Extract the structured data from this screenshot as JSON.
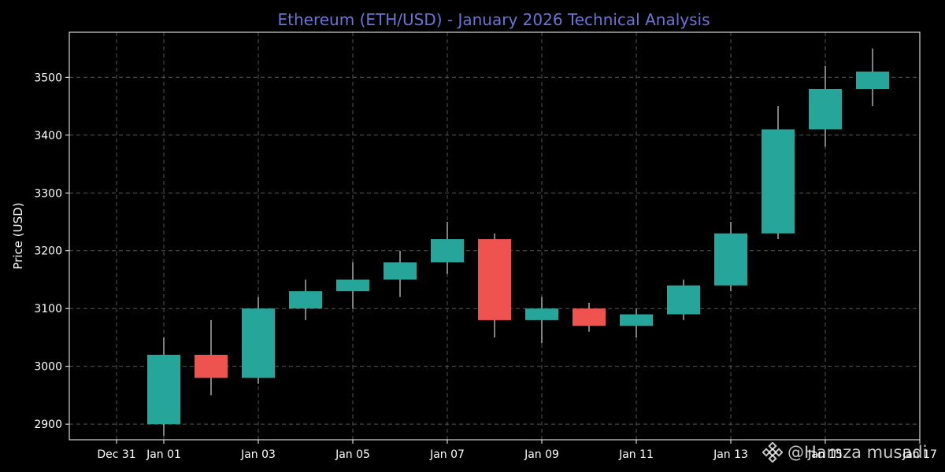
{
  "chart_data": {
    "type": "candlestick",
    "title": "Ethereum (ETH/USD) - January 2026 Technical Analysis",
    "xlabel": "",
    "ylabel": "Price (USD)",
    "ylim": [
      2873,
      3578
    ],
    "yticks": [
      2900,
      3000,
      3100,
      3200,
      3300,
      3400,
      3500
    ],
    "xlim": [
      "2025-12-30",
      "2026-01-17"
    ],
    "xticks": [
      {
        "date": "2025-12-31",
        "label": "Dec 31"
      },
      {
        "date": "2026-01-01",
        "label": "Jan 01"
      },
      {
        "date": "2026-01-03",
        "label": "Jan 03"
      },
      {
        "date": "2026-01-05",
        "label": "Jan 05"
      },
      {
        "date": "2026-01-07",
        "label": "Jan 07"
      },
      {
        "date": "2026-01-09",
        "label": "Jan 09"
      },
      {
        "date": "2026-01-11",
        "label": "Jan 11"
      },
      {
        "date": "2026-01-13",
        "label": "Jan 13"
      },
      {
        "date": "2026-01-15",
        "label": "Jan 15"
      },
      {
        "date": "2026-01-17",
        "label": "Jan 17"
      }
    ],
    "grid": true,
    "colors": {
      "up": "#26a69a",
      "down": "#ef5350",
      "wick": "#ffffff",
      "title": "#6c73d8",
      "background": "#000000",
      "axis": "#ffffff",
      "grid": "#555555"
    },
    "candles": [
      {
        "date": "2026-01-01",
        "open": 2900,
        "high": 3050,
        "low": 2880,
        "close": 3020
      },
      {
        "date": "2026-01-02",
        "open": 3020,
        "high": 3080,
        "low": 2950,
        "close": 2980
      },
      {
        "date": "2026-01-03",
        "open": 2980,
        "high": 3120,
        "low": 2970,
        "close": 3100
      },
      {
        "date": "2026-01-04",
        "open": 3100,
        "high": 3150,
        "low": 3080,
        "close": 3130
      },
      {
        "date": "2026-01-05",
        "open": 3130,
        "high": 3180,
        "low": 3100,
        "close": 3150
      },
      {
        "date": "2026-01-06",
        "open": 3150,
        "high": 3200,
        "low": 3120,
        "close": 3180
      },
      {
        "date": "2026-01-07",
        "open": 3180,
        "high": 3250,
        "low": 3160,
        "close": 3220
      },
      {
        "date": "2026-01-08",
        "open": 3220,
        "high": 3230,
        "low": 3050,
        "close": 3080
      },
      {
        "date": "2026-01-09",
        "open": 3080,
        "high": 3120,
        "low": 3040,
        "close": 3100
      },
      {
        "date": "2026-01-10",
        "open": 3100,
        "high": 3110,
        "low": 3060,
        "close": 3070
      },
      {
        "date": "2026-01-11",
        "open": 3070,
        "high": 3100,
        "low": 3050,
        "close": 3090
      },
      {
        "date": "2026-01-12",
        "open": 3090,
        "high": 3150,
        "low": 3080,
        "close": 3140
      },
      {
        "date": "2026-01-13",
        "open": 3140,
        "high": 3250,
        "low": 3130,
        "close": 3230
      },
      {
        "date": "2026-01-14",
        "open": 3230,
        "high": 3450,
        "low": 3220,
        "close": 3410
      },
      {
        "date": "2026-01-15",
        "open": 3410,
        "high": 3520,
        "low": 3380,
        "close": 3480
      },
      {
        "date": "2026-01-16",
        "open": 3480,
        "high": 3550,
        "low": 3450,
        "close": 3510
      }
    ]
  },
  "watermark": {
    "icon": "binance-logo-icon",
    "text": "@Hamza musadi"
  }
}
